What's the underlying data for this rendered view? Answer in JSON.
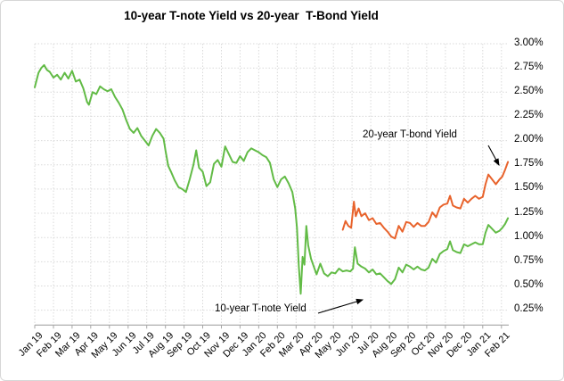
{
  "chart": {
    "title": "10-year T-note Yield vs 20-year  T-Bond Yield"
  },
  "annotations": {
    "tbond_label": "20-year T-bond Yield",
    "tnote_label": "10-year T-note Yield"
  },
  "chart_data": {
    "type": "line",
    "title": "10-year T-note Yield vs 20-year  T-Bond Yield",
    "grid": true,
    "legend": "none (arrow annotations instead)",
    "x_axis": {
      "labels": [
        "Jan 19",
        "Feb 19",
        "Mar 19",
        "Apr 19",
        "May 19",
        "Jun 19",
        "Jul 19",
        "Aug 19",
        "Sep 19",
        "Oct 19",
        "Nov 19",
        "Dec 19",
        "Jan 20",
        "Feb 20",
        "Mar 20",
        "Apr 20",
        "May 20",
        "Jun 20",
        "Jul 20",
        "Aug 20",
        "Sep 20",
        "Oct 20",
        "Nov 20",
        "Dec 20",
        "Jan 21",
        "Feb 21"
      ],
      "tick_rotation_deg": -45
    },
    "y_axis": {
      "labels": [
        "3.00%",
        "2.75%",
        "2.50%",
        "2.25%",
        "2.00%",
        "1.75%",
        "1.50%",
        "1.25%",
        "1.00%",
        "0.75%",
        "0.50%",
        "0.25%"
      ],
      "min": 0.25,
      "max": 3.0,
      "step": 0.25,
      "side": "right",
      "format": "percent"
    },
    "series": [
      {
        "name": "10-year T-note Yield",
        "color": "#62BB46",
        "x_unit": "months since Jan 2019",
        "x": [
          0,
          0.2,
          0.35,
          0.5,
          0.65,
          0.8,
          1,
          1.2,
          1.4,
          1.6,
          1.8,
          2,
          2.2,
          2.4,
          2.6,
          2.8,
          2.9,
          3.1,
          3.3,
          3.5,
          3.7,
          3.9,
          4.1,
          4.3,
          4.5,
          4.7,
          4.9,
          5.1,
          5.3,
          5.5,
          5.7,
          5.9,
          6.1,
          6.3,
          6.5,
          6.7,
          6.9,
          7,
          7.15,
          7.3,
          7.5,
          7.7,
          7.9,
          8.1,
          8.3,
          8.5,
          8.65,
          8.8,
          9,
          9.2,
          9.4,
          9.6,
          9.8,
          10,
          10.2,
          10.4,
          10.6,
          10.8,
          11,
          11.2,
          11.4,
          11.6,
          11.8,
          12,
          12.2,
          12.4,
          12.6,
          12.8,
          13,
          13.2,
          13.4,
          13.6,
          13.8,
          13.95,
          14.05,
          14.15,
          14.25,
          14.35,
          14.45,
          14.55,
          14.65,
          14.8,
          14.95,
          15.1,
          15.3,
          15.5,
          15.7,
          15.9,
          16.1,
          16.3,
          16.5,
          16.7,
          16.9,
          17.05,
          17.15,
          17.3,
          17.5,
          17.7,
          17.9,
          18.1,
          18.3,
          18.5,
          18.7,
          18.9,
          19.1,
          19.3,
          19.5,
          19.7,
          19.9,
          20.1,
          20.3,
          20.5,
          20.7,
          20.9,
          21.1,
          21.3,
          21.5,
          21.7,
          21.9,
          22.1,
          22.25,
          22.4,
          22.6,
          22.8,
          23,
          23.2,
          23.4,
          23.6,
          23.8,
          24,
          24.15,
          24.3,
          24.5,
          24.7,
          24.9,
          25.05,
          25.2,
          25.35
        ],
        "values": [
          2.55,
          2.7,
          2.75,
          2.78,
          2.73,
          2.71,
          2.65,
          2.68,
          2.63,
          2.7,
          2.64,
          2.72,
          2.61,
          2.63,
          2.54,
          2.4,
          2.37,
          2.5,
          2.48,
          2.56,
          2.53,
          2.51,
          2.53,
          2.45,
          2.39,
          2.32,
          2.21,
          2.12,
          2.08,
          2.13,
          2.05,
          2,
          1.95,
          2.05,
          2.12,
          2.08,
          2.02,
          1.9,
          1.74,
          1.68,
          1.59,
          1.52,
          1.5,
          1.47,
          1.6,
          1.75,
          1.9,
          1.72,
          1.68,
          1.53,
          1.57,
          1.76,
          1.8,
          1.73,
          1.94,
          1.86,
          1.78,
          1.77,
          1.84,
          1.79,
          1.88,
          1.92,
          1.9,
          1.88,
          1.85,
          1.83,
          1.77,
          1.6,
          1.52,
          1.6,
          1.63,
          1.56,
          1.47,
          1.3,
          1.1,
          0.7,
          0.42,
          0.8,
          0.72,
          1.12,
          0.92,
          0.78,
          0.7,
          0.62,
          0.73,
          0.63,
          0.6,
          0.64,
          0.63,
          0.68,
          0.65,
          0.66,
          0.65,
          0.68,
          0.9,
          0.73,
          0.7,
          0.68,
          0.64,
          0.67,
          0.62,
          0.63,
          0.59,
          0.55,
          0.52,
          0.57,
          0.69,
          0.64,
          0.72,
          0.7,
          0.67,
          0.7,
          0.67,
          0.66,
          0.69,
          0.78,
          0.74,
          0.83,
          0.86,
          0.88,
          0.96,
          0.87,
          0.85,
          0.84,
          0.93,
          0.91,
          0.93,
          0.95,
          0.93,
          0.93,
          1.05,
          1.13,
          1.09,
          1.05,
          1.07,
          1.1,
          1.14,
          1.2
        ]
      },
      {
        "name": "20-year T-bond Yield",
        "color": "#E8632C",
        "x_unit": "months since Jan 2019",
        "x": [
          16.5,
          16.65,
          16.8,
          16.95,
          17.1,
          17.2,
          17.35,
          17.5,
          17.7,
          17.9,
          18.1,
          18.3,
          18.5,
          18.7,
          18.9,
          19.1,
          19.3,
          19.5,
          19.7,
          19.9,
          20.1,
          20.3,
          20.5,
          20.7,
          20.9,
          21.1,
          21.3,
          21.5,
          21.7,
          21.9,
          22.1,
          22.25,
          22.4,
          22.6,
          22.8,
          23,
          23.2,
          23.4,
          23.6,
          23.8,
          24,
          24.15,
          24.3,
          24.5,
          24.7,
          24.9,
          25.05,
          25.2,
          25.35
        ],
        "values": [
          1.08,
          1.17,
          1.12,
          1.1,
          1.37,
          1.22,
          1.3,
          1.22,
          1.25,
          1.18,
          1.2,
          1.14,
          1.15,
          1.1,
          1.06,
          1.01,
          0.99,
          1.12,
          1.06,
          1.16,
          1.15,
          1.11,
          1.15,
          1.12,
          1.12,
          1.16,
          1.26,
          1.21,
          1.31,
          1.34,
          1.35,
          1.43,
          1.33,
          1.31,
          1.3,
          1.4,
          1.36,
          1.4,
          1.43,
          1.4,
          1.42,
          1.55,
          1.65,
          1.6,
          1.55,
          1.6,
          1.63,
          1.7,
          1.78
        ]
      }
    ]
  }
}
